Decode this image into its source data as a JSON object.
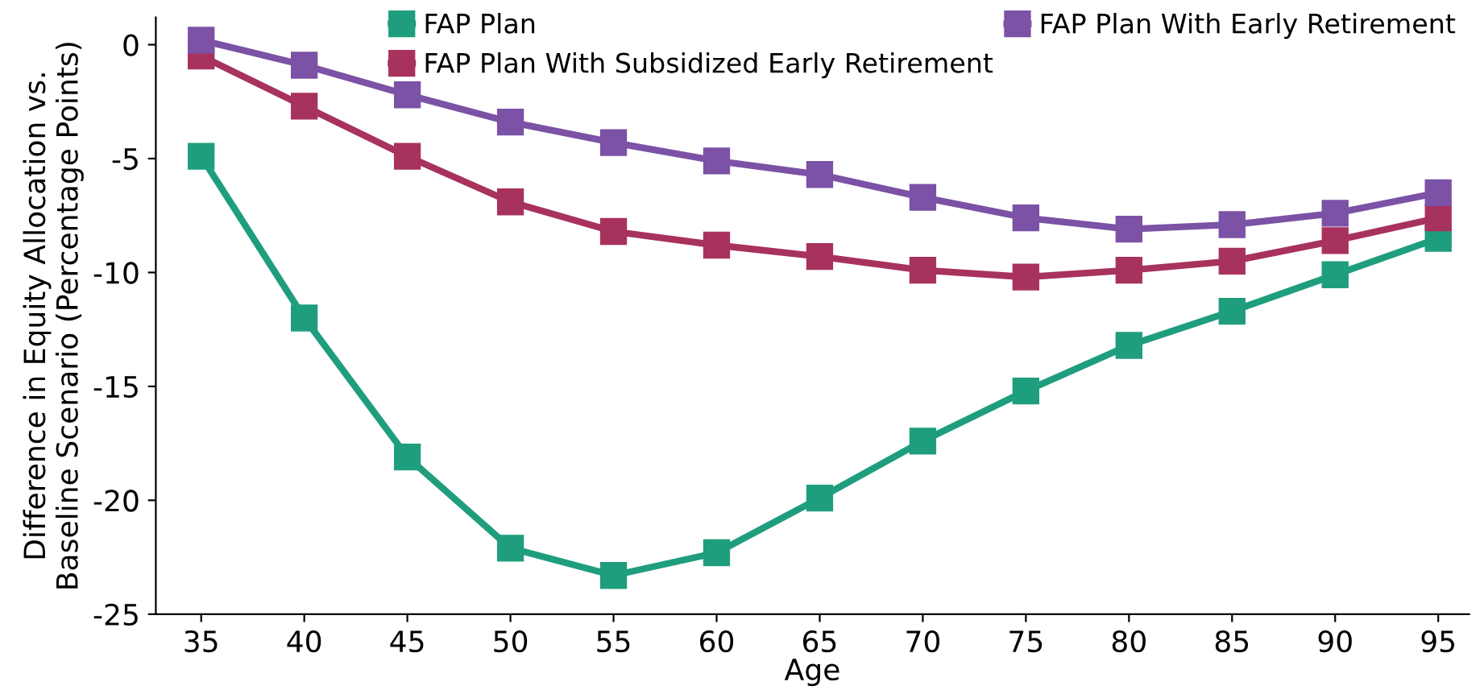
{
  "chart_data": {
    "type": "line",
    "xlabel": "Age",
    "ylabel": "Difference in Equity Allocation vs.\nBaseline Scenario (Percentage Points)",
    "x": [
      35,
      40,
      45,
      50,
      55,
      60,
      65,
      70,
      75,
      80,
      85,
      90,
      95
    ],
    "series": [
      {
        "name": "FAP Plan",
        "color": "#1f9e7e",
        "values": [
          -4.9,
          -12.0,
          -18.1,
          -22.1,
          -23.3,
          -22.3,
          -19.9,
          -17.4,
          -15.2,
          -13.2,
          -11.7,
          -10.1,
          -8.5
        ]
      },
      {
        "name": "FAP Plan With Subsidized Early Retirement",
        "color": "#a8325e",
        "values": [
          -0.5,
          -2.7,
          -4.9,
          -6.9,
          -8.2,
          -8.8,
          -9.3,
          -9.9,
          -10.2,
          -9.9,
          -9.5,
          -8.6,
          -7.6
        ]
      },
      {
        "name": "FAP Plan With Early Retirement",
        "color": "#7b52a6",
        "values": [
          0.2,
          -0.9,
          -2.2,
          -3.4,
          -4.3,
          -5.1,
          -5.7,
          -6.7,
          -7.6,
          -8.1,
          -7.9,
          -7.4,
          -6.5
        ]
      }
    ],
    "xlim": [
      32.8,
      96.5
    ],
    "ylim": [
      -25,
      1.2
    ],
    "xticks": [
      35,
      40,
      45,
      50,
      55,
      60,
      65,
      70,
      75,
      80,
      85,
      90,
      95
    ],
    "yticks": [
      {
        "value": 0,
        "label": "0"
      },
      {
        "value": -5,
        "label": "-5"
      },
      {
        "value": -10,
        "label": "-10"
      },
      {
        "value": -15,
        "label": "-15"
      },
      {
        "value": -20,
        "label": "-20"
      },
      {
        "value": -25,
        "label": "-25"
      }
    ],
    "marker": "square",
    "line_style": "solid",
    "grid": false,
    "legend": "top right"
  }
}
